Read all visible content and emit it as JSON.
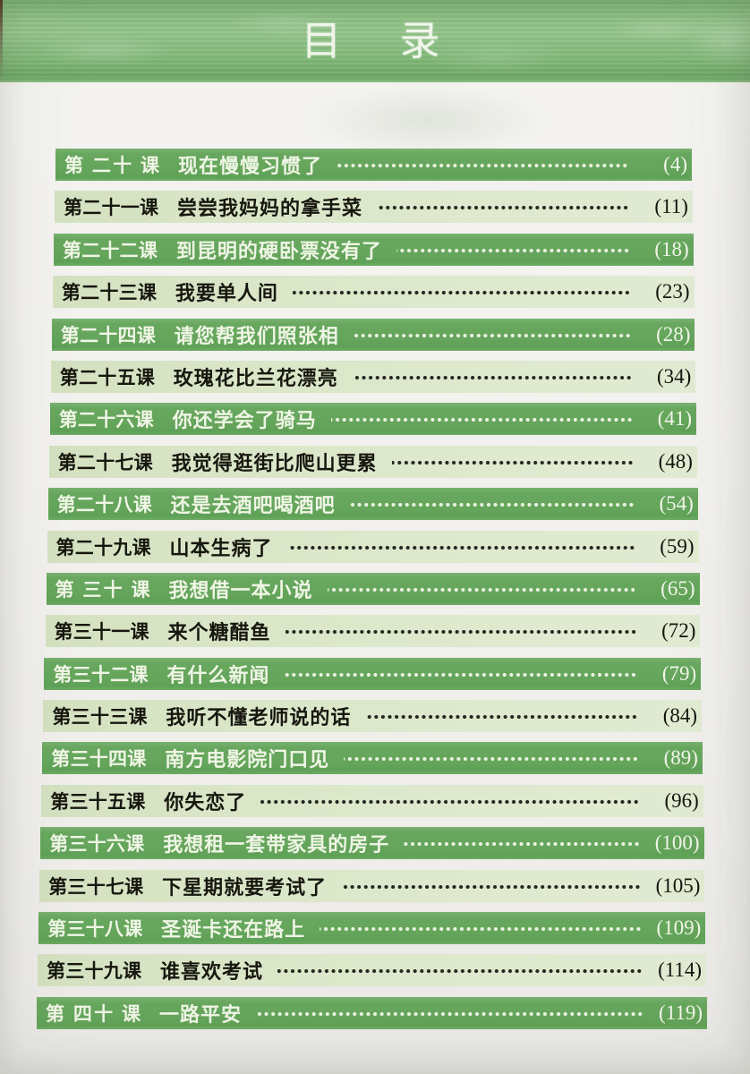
{
  "header": {
    "title": "目　录"
  },
  "toc": {
    "rows": [
      {
        "lesson": "第 二十 课",
        "title": "现在慢慢习惯了",
        "page": "(4)"
      },
      {
        "lesson": "第二十一课",
        "title": "尝尝我妈妈的拿手菜",
        "page": "(11)"
      },
      {
        "lesson": "第二十二课",
        "title": "到昆明的硬卧票没有了",
        "page": "(18)"
      },
      {
        "lesson": "第二十三课",
        "title": "我要单人间",
        "page": "(23)"
      },
      {
        "lesson": "第二十四课",
        "title": "请您帮我们照张相",
        "page": "(28)"
      },
      {
        "lesson": "第二十五课",
        "title": "玫瑰花比兰花漂亮",
        "page": "(34)"
      },
      {
        "lesson": "第二十六课",
        "title": "你还学会了骑马",
        "page": "(41)"
      },
      {
        "lesson": "第二十七课",
        "title": "我觉得逛街比爬山更累",
        "page": "(48)"
      },
      {
        "lesson": "第二十八课",
        "title": "还是去酒吧喝酒吧",
        "page": "(54)"
      },
      {
        "lesson": "第二十九课",
        "title": "山本生病了",
        "page": "(59)"
      },
      {
        "lesson": "第 三十 课",
        "title": "我想借一本小说",
        "page": "(65)"
      },
      {
        "lesson": "第三十一课",
        "title": "来个糖醋鱼",
        "page": "(72)"
      },
      {
        "lesson": "第三十二课",
        "title": "有什么新闻",
        "page": "(79)"
      },
      {
        "lesson": "第三十三课",
        "title": "我听不懂老师说的话",
        "page": "(84)"
      },
      {
        "lesson": "第三十四课",
        "title": "南方电影院门口见",
        "page": "(89)"
      },
      {
        "lesson": "第三十五课",
        "title": "你失恋了",
        "page": "(96)"
      },
      {
        "lesson": "第三十六课",
        "title": "我想租一套带家具的房子",
        "page": "(100)"
      },
      {
        "lesson": "第三十七课",
        "title": "下星期就要考试了",
        "page": "(105)"
      },
      {
        "lesson": "第三十八课",
        "title": "圣诞卡还在路上",
        "page": "(109)"
      },
      {
        "lesson": "第三十九课",
        "title": "谁喜欢考试",
        "page": "(114)"
      },
      {
        "lesson": "第 四十 课",
        "title": "一路平安",
        "page": "(119)"
      }
    ]
  },
  "colors": {
    "band_dark": "#67a75e",
    "band_light": "#dbe7c9",
    "text_on_dark": "#eff5e5",
    "text_on_light": "#17170f",
    "header_green": "#8abf80"
  }
}
